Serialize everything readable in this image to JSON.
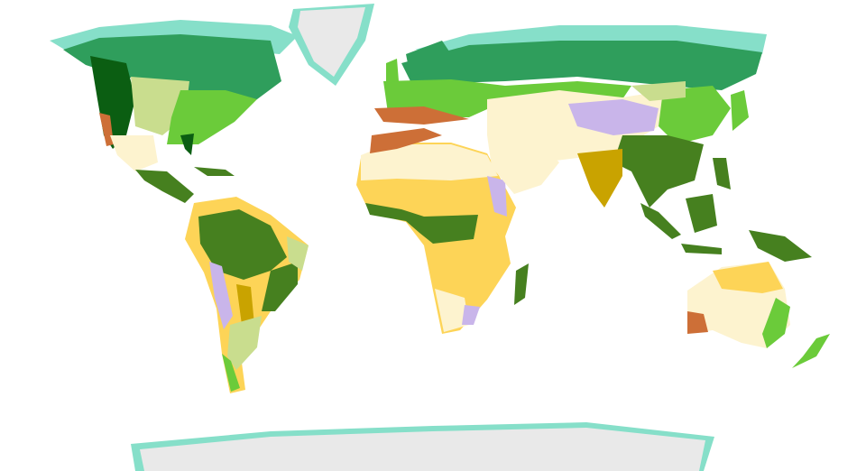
{
  "map": {
    "type": "world biome map",
    "biome_colors": {
      "tundra": "#86dfc9",
      "boreal_forest": "#2f9e5c",
      "temperate_conifer": "#0b5e12",
      "temperate_broadleaf": "#6bcb3a",
      "temperate_grassland": "#c9dd8e",
      "mediterranean": "#cd6f37",
      "desert": "#fdf3cf",
      "tropical_grassland": "#fdd457",
      "tropical_moist_forest": "#46801f",
      "tropical_dry_forest": "#c9a300",
      "montane_grassland": "#c9b5ea",
      "flooded_grassland": "#7ba8e2",
      "mangrove": "#e04fa0",
      "ice": "#e9e9e9"
    }
  }
}
